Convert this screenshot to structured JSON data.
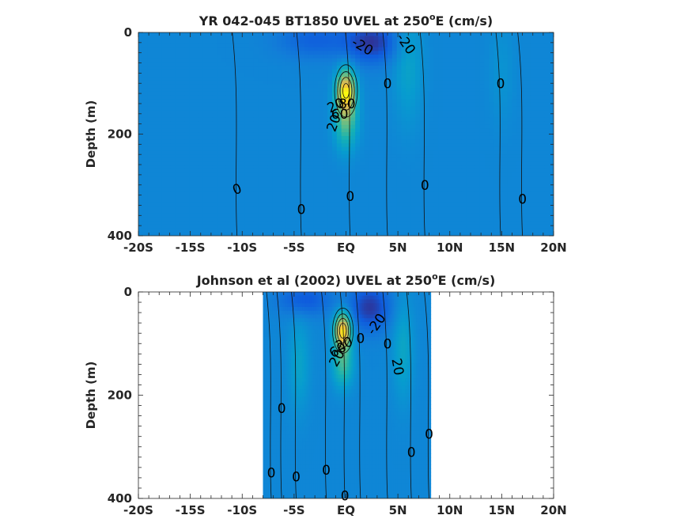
{
  "chart_data": [
    {
      "type": "heatmap",
      "title": "YR 042-045 BT1850 UVEL at 250",
      "title_superscript": "o",
      "title_suffix": "E (cm/s)",
      "ylabel": "Depth (m)",
      "xlim": [
        -20,
        20
      ],
      "ylim": [
        0,
        400
      ],
      "y_reversed": true,
      "x_ticks": [
        -20,
        -15,
        -10,
        -5,
        0,
        5,
        10,
        15,
        20
      ],
      "x_tick_labels": [
        "-20S",
        "-15S",
        "-10S",
        "-5S",
        "EQ",
        "5N",
        "10N",
        "15N",
        "20N"
      ],
      "y_ticks": [
        0,
        200,
        400
      ],
      "y_tick_labels": [
        "0",
        "200",
        "400"
      ],
      "data_extent_lat": [
        -20,
        20
      ],
      "colormap": "parula",
      "color_range": [
        -40,
        100
      ],
      "field_features": [
        {
          "kind": "jet",
          "lat": 0,
          "depth": 115,
          "value": 90,
          "width_lat": 0.9,
          "width_depth": 42
        },
        {
          "kind": "jet-tail",
          "lat": 0,
          "depth": 175,
          "value": 45,
          "width_lat": 1.1,
          "width_depth": 55
        },
        {
          "kind": "jet",
          "lat": 6,
          "depth": 60,
          "value": 18,
          "width_lat": 1.4,
          "width_depth": 120
        },
        {
          "kind": "jet",
          "lat": 15,
          "depth": 80,
          "value": 8,
          "width_lat": 1.2,
          "width_depth": 100
        },
        {
          "kind": "westward",
          "lat": 2.5,
          "depth": 20,
          "value": -35,
          "width_lat": 2.5,
          "width_depth": 40
        },
        {
          "kind": "westward",
          "lat": -3,
          "depth": 15,
          "value": -20,
          "width_lat": 3.5,
          "width_depth": 35
        }
      ],
      "contour_labels": [
        {
          "text": "-20",
          "lat": 1.6,
          "depth": 27,
          "angle": 30
        },
        {
          "text": "-20",
          "lat": 5.8,
          "depth": 22,
          "angle": 55
        },
        {
          "text": "0",
          "lat": 4.0,
          "depth": 100,
          "angle": 0
        },
        {
          "text": "0",
          "lat": 14.9,
          "depth": 100,
          "angle": 0
        },
        {
          "text": "20",
          "lat": -1.0,
          "depth": 143,
          "angle": -25
        },
        {
          "text": "60",
          "lat": -0.6,
          "depth": 160,
          "angle": 0
        },
        {
          "text": "80",
          "lat": 0.1,
          "depth": 140,
          "angle": 0
        },
        {
          "text": "20",
          "lat": -1.2,
          "depth": 178,
          "angle": -70
        },
        {
          "text": "0",
          "lat": -10.5,
          "depth": 308,
          "angle": -20
        },
        {
          "text": "0",
          "lat": -4.3,
          "depth": 348,
          "angle": 0
        },
        {
          "text": "0",
          "lat": 0.4,
          "depth": 322,
          "angle": 0
        },
        {
          "text": "0",
          "lat": 7.6,
          "depth": 300,
          "angle": 0
        },
        {
          "text": "0",
          "lat": 17.0,
          "depth": 328,
          "angle": 0
        }
      ]
    },
    {
      "type": "heatmap",
      "title": "Johnson et al (2002) UVEL at 250",
      "title_superscript": "o",
      "title_suffix": "E (cm/s)",
      "ylabel": "Depth (m)",
      "xlim": [
        -20,
        20
      ],
      "ylim": [
        0,
        400
      ],
      "y_reversed": true,
      "x_ticks": [
        -20,
        -15,
        -10,
        -5,
        0,
        5,
        10,
        15,
        20
      ],
      "x_tick_labels": [
        "-20S",
        "-15S",
        "-10S",
        "-5S",
        "EQ",
        "5N",
        "10N",
        "15N",
        "20N"
      ],
      "y_ticks": [
        0,
        200,
        400
      ],
      "y_tick_labels": [
        "0",
        "200",
        "400"
      ],
      "data_extent_lat": [
        -8,
        8.2
      ],
      "colormap": "parula",
      "color_range": [
        -40,
        100
      ],
      "field_features": [
        {
          "kind": "jet",
          "lat": -0.3,
          "depth": 75,
          "value": 95,
          "width_lat": 0.8,
          "width_depth": 35
        },
        {
          "kind": "jet-tail",
          "lat": -0.3,
          "depth": 140,
          "value": 40,
          "width_lat": 1.0,
          "width_depth": 45
        },
        {
          "kind": "jet",
          "lat": 5.5,
          "depth": 110,
          "value": 20,
          "width_lat": 1.0,
          "width_depth": 100
        },
        {
          "kind": "jet",
          "lat": -4.5,
          "depth": 140,
          "value": 18,
          "width_lat": 1.0,
          "width_depth": 90
        },
        {
          "kind": "westward",
          "lat": 2.3,
          "depth": 30,
          "value": -35,
          "width_lat": 2.0,
          "width_depth": 45
        },
        {
          "kind": "westward",
          "lat": -4,
          "depth": 15,
          "value": -25,
          "width_lat": 2.5,
          "width_depth": 30
        }
      ],
      "contour_labels": [
        {
          "text": "-20",
          "lat": 2.9,
          "depth": 62,
          "angle": -55
        },
        {
          "text": "0",
          "lat": 4.0,
          "depth": 100,
          "angle": 0
        },
        {
          "text": "20",
          "lat": 5.0,
          "depth": 145,
          "angle": 80
        },
        {
          "text": "20",
          "lat": -0.2,
          "depth": 100,
          "angle": -20
        },
        {
          "text": "60",
          "lat": -0.8,
          "depth": 112,
          "angle": -30
        },
        {
          "text": "20",
          "lat": -0.9,
          "depth": 128,
          "angle": -60
        },
        {
          "text": "0",
          "lat": 1.4,
          "depth": 90,
          "angle": 0
        },
        {
          "text": "0",
          "lat": -6.2,
          "depth": 225,
          "angle": 0
        },
        {
          "text": "0",
          "lat": 8.0,
          "depth": 275,
          "angle": 0
        },
        {
          "text": "0",
          "lat": 6.3,
          "depth": 310,
          "angle": 0
        },
        {
          "text": "0",
          "lat": -1.9,
          "depth": 345,
          "angle": 0
        },
        {
          "text": "0",
          "lat": -7.2,
          "depth": 350,
          "angle": 0
        },
        {
          "text": "0",
          "lat": -4.8,
          "depth": 358,
          "angle": 0
        },
        {
          "text": "0",
          "lat": -0.1,
          "depth": 395,
          "angle": 0
        }
      ]
    }
  ]
}
